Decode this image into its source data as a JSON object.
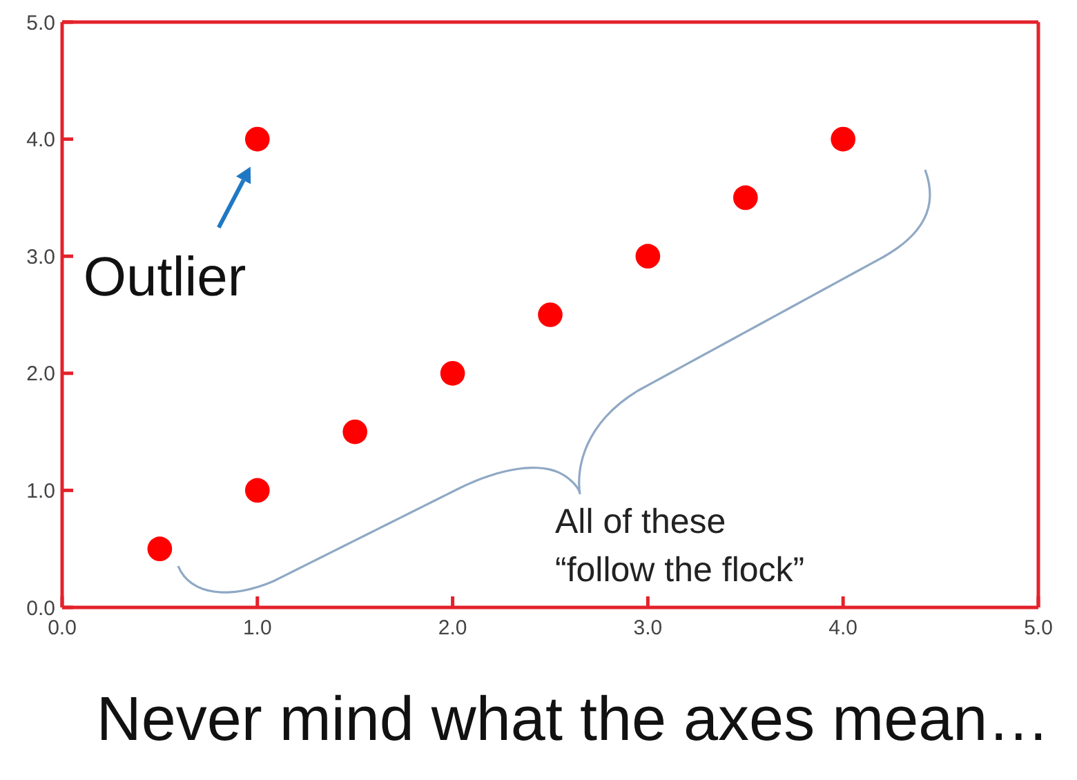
{
  "chart_data": {
    "type": "scatter",
    "x": [
      0.5,
      1,
      1.5,
      2,
      2.5,
      3,
      3.5,
      4,
      1
    ],
    "values": [
      0.5,
      1,
      1.5,
      2,
      2.5,
      3,
      3.5,
      4,
      4
    ],
    "color": "#ff0000",
    "marker": "circle",
    "xlim": [
      0,
      5
    ],
    "ylim": [
      0,
      5
    ],
    "xticks": [
      {
        "value": 0,
        "label": "0.0"
      },
      {
        "value": 1,
        "label": "1.0"
      },
      {
        "value": 2,
        "label": "2.0"
      },
      {
        "value": 3,
        "label": "3.0"
      },
      {
        "value": 4,
        "label": "4.0"
      },
      {
        "value": 5,
        "label": "5.0"
      }
    ],
    "yticks": [
      {
        "value": 0,
        "label": "0.0"
      },
      {
        "value": 1,
        "label": "1.0"
      },
      {
        "value": 2,
        "label": "2.0"
      },
      {
        "value": 3,
        "label": "3.0"
      },
      {
        "value": 4,
        "label": "4.0"
      },
      {
        "value": 5,
        "label": "5.0"
      }
    ],
    "annotations": [
      {
        "text": "Outlier",
        "x": 1,
        "y": 4
      },
      "All of these\n“follow the flock”",
      "Never mind what the axes mean…"
    ]
  }
}
